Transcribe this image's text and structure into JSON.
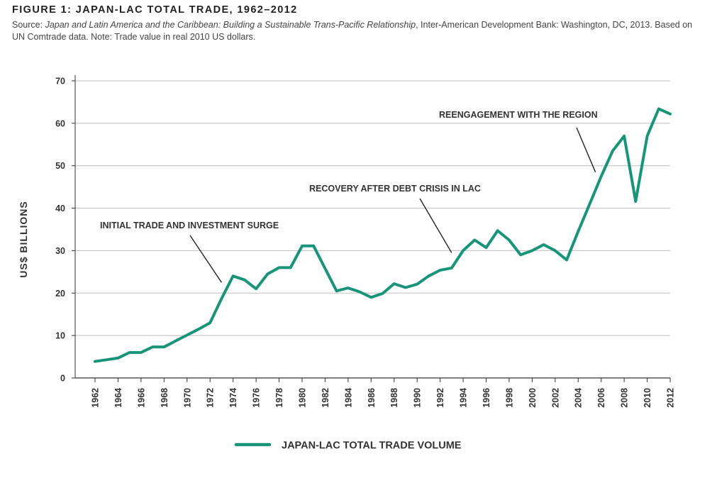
{
  "figure": {
    "title": "FIGURE 1: JAPAN-LAC TOTAL TRADE, 1962–2012",
    "source_prefix": "Source: ",
    "source_italic": "Japan and Latin America and the Caribbean: Building a Sustainable Trans-Pacific Relationship",
    "source_rest": ", Inter-American Development Bank: Washington, DC, 2013. Based on UN Comtrade data. Note: Trade value in real 2010 US dollars."
  },
  "colors": {
    "line": "#1a9479",
    "grid": "#bdbdbd",
    "axis": "#333333"
  },
  "chart_data": {
    "type": "line",
    "ylabel": "US$ BILLIONS",
    "xlabel": "",
    "ylim": [
      0,
      70
    ],
    "yticks": [
      0,
      10,
      20,
      30,
      40,
      50,
      60,
      70
    ],
    "xlim": [
      1962,
      2012
    ],
    "xticks": [
      1962,
      1964,
      1966,
      1968,
      1970,
      1972,
      1974,
      1976,
      1978,
      1980,
      1982,
      1984,
      1986,
      1988,
      1990,
      1992,
      1994,
      1996,
      1998,
      2000,
      2002,
      2004,
      2006,
      2008,
      2010,
      2012
    ],
    "grid": true,
    "legend_position": "bottom-center",
    "series": [
      {
        "name": "JAPAN-LAC TOTAL TRADE VOLUME",
        "x": [
          1962,
          1963,
          1964,
          1965,
          1966,
          1967,
          1968,
          1969,
          1970,
          1971,
          1972,
          1973,
          1974,
          1975,
          1976,
          1977,
          1978,
          1979,
          1980,
          1981,
          1982,
          1983,
          1984,
          1985,
          1986,
          1987,
          1988,
          1989,
          1990,
          1991,
          1992,
          1993,
          1994,
          1995,
          1996,
          1997,
          1998,
          1999,
          2000,
          2001,
          2002,
          2003,
          2004,
          2005,
          2006,
          2007,
          2008,
          2009,
          2010,
          2011,
          2012
        ],
        "values": [
          3.9,
          4.3,
          4.7,
          6.0,
          6.0,
          7.3,
          7.3,
          8.7,
          10.1,
          11.5,
          13.0,
          18.7,
          24.0,
          23.1,
          21.0,
          24.5,
          26.0,
          26.0,
          31.1,
          31.1,
          25.8,
          20.5,
          21.2,
          20.3,
          19.0,
          19.9,
          22.2,
          21.3,
          22.1,
          24.0,
          25.4,
          25.9,
          30.0,
          32.5,
          30.7,
          34.7,
          32.5,
          29.0,
          30.0,
          31.4,
          30.0,
          27.8,
          34.5,
          41.0,
          47.5,
          53.5,
          57.0,
          41.6,
          57.0,
          63.4,
          62.2
        ]
      }
    ],
    "annotations": [
      {
        "text": "INITIAL TRADE AND INVESTMENT SURGE",
        "target_x": 1973,
        "target_y": 22.5
      },
      {
        "text": "RECOVERY AFTER DEBT CRISIS IN LAC",
        "target_x": 1993,
        "target_y": 29.5
      },
      {
        "text": "REENGAGEMENT WITH THE REGION",
        "target_x": 2005.5,
        "target_y": 48.5
      }
    ]
  }
}
